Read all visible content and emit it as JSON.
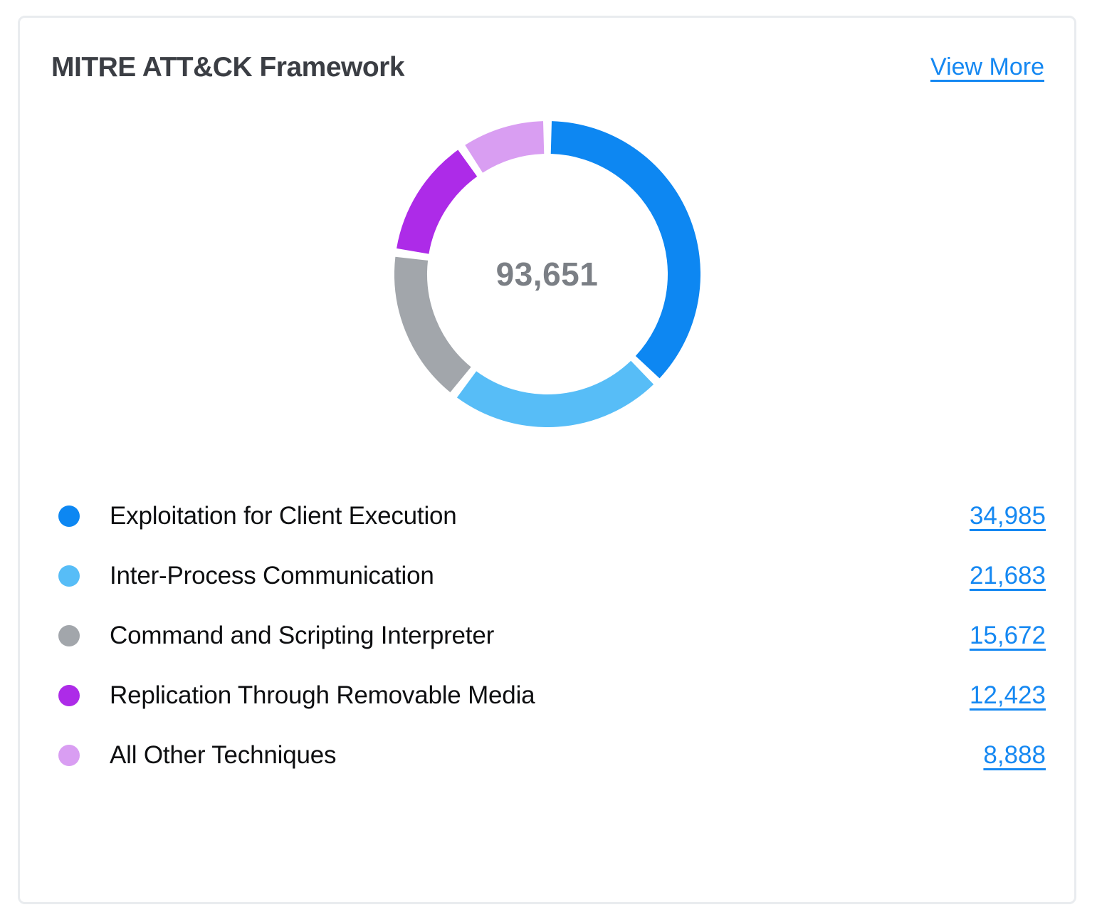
{
  "card": {
    "title": "MITRE ATT&CK Framework",
    "view_more_label": "View More"
  },
  "chart_data": {
    "type": "pie",
    "variant": "donut",
    "title": "MITRE ATT&CK Framework",
    "center_text": "93,651",
    "total": 93651,
    "legend_position": "bottom",
    "donut_style": {
      "thickness_px": 46,
      "pad_angle_deg": 3.2,
      "start_angle_deg": 0,
      "clockwise": true
    },
    "segments": [
      {
        "label": "Exploitation for Client Execution",
        "value": 34985,
        "display_value": "34,985",
        "color": "#0d87f2"
      },
      {
        "label": "Inter-Process Communication",
        "value": 21683,
        "display_value": "21,683",
        "color": "#57bdf7"
      },
      {
        "label": "Command and Scripting Interpreter",
        "value": 15672,
        "display_value": "15,672",
        "color": "#a2a6ab"
      },
      {
        "label": "Replication Through Removable Media",
        "value": 12423,
        "display_value": "12,423",
        "color": "#ad2be8"
      },
      {
        "label": "All Other Techniques",
        "value": 8888,
        "display_value": "8,888",
        "color": "#d99ef2"
      }
    ]
  },
  "colors": {
    "link": "#1588f2",
    "title_text": "#3b3e44",
    "center_text": "#7b7f85",
    "card_border": "#e9ecef",
    "label_text": "#0e0f11"
  }
}
